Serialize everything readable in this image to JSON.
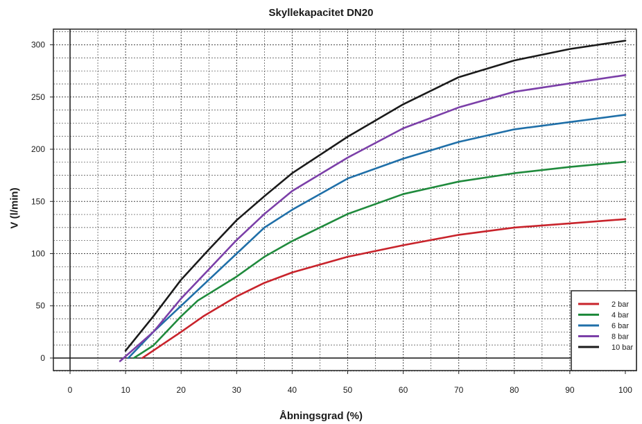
{
  "chart_data": {
    "type": "line",
    "title": "Skyllekapacitet DN20",
    "xlabel": "Åbningsgrad (%)",
    "ylabel": "V (l/min)",
    "xlim": [
      -3,
      102
    ],
    "ylim": [
      -12,
      315
    ],
    "x_ticks": [
      "0",
      "10",
      "20",
      "30",
      "40",
      "50",
      "60",
      "70",
      "80",
      "90",
      "100"
    ],
    "y_ticks": [
      "0",
      "50",
      "100",
      "150",
      "200",
      "250",
      "300"
    ],
    "grid": true,
    "legend_position": "bottom-right",
    "series": [
      {
        "name": "2 bar",
        "color": "#c8232b",
        "points": [
          [
            13,
            0
          ],
          [
            20,
            25
          ],
          [
            24,
            40
          ],
          [
            30,
            59
          ],
          [
            35,
            72
          ],
          [
            40,
            82
          ],
          [
            50,
            97
          ],
          [
            60,
            108
          ],
          [
            70,
            118
          ],
          [
            80,
            125
          ],
          [
            90,
            129
          ],
          [
            100,
            133
          ]
        ]
      },
      {
        "name": "4 bar",
        "color": "#1f8a3c",
        "points": [
          [
            11.5,
            0
          ],
          [
            15,
            12
          ],
          [
            20,
            40
          ],
          [
            23,
            55
          ],
          [
            30,
            78
          ],
          [
            35,
            97
          ],
          [
            40,
            112
          ],
          [
            50,
            138
          ],
          [
            60,
            157
          ],
          [
            70,
            169
          ],
          [
            80,
            177
          ],
          [
            90,
            183
          ],
          [
            100,
            188
          ]
        ]
      },
      {
        "name": "6 bar",
        "color": "#1f6fa8",
        "points": [
          [
            10.5,
            0
          ],
          [
            15,
            25
          ],
          [
            20,
            50
          ],
          [
            25,
            75
          ],
          [
            30,
            100
          ],
          [
            35,
            125
          ],
          [
            40,
            142
          ],
          [
            50,
            172
          ],
          [
            60,
            191
          ],
          [
            70,
            207
          ],
          [
            80,
            219
          ],
          [
            90,
            226
          ],
          [
            100,
            233
          ]
        ]
      },
      {
        "name": "8 bar",
        "color": "#7b3fa8",
        "points": [
          [
            9,
            -3
          ],
          [
            15,
            25
          ],
          [
            20,
            57
          ],
          [
            25,
            85
          ],
          [
            30,
            113
          ],
          [
            35,
            138
          ],
          [
            40,
            160
          ],
          [
            50,
            192
          ],
          [
            60,
            220
          ],
          [
            70,
            240
          ],
          [
            80,
            255
          ],
          [
            90,
            263
          ],
          [
            100,
            271
          ]
        ]
      },
      {
        "name": "10 bar",
        "color": "#1a1a1a",
        "points": [
          [
            10,
            7
          ],
          [
            15,
            40
          ],
          [
            20,
            75
          ],
          [
            25,
            104
          ],
          [
            30,
            132
          ],
          [
            35,
            155
          ],
          [
            40,
            177
          ],
          [
            50,
            212
          ],
          [
            60,
            243
          ],
          [
            70,
            269
          ],
          [
            80,
            285
          ],
          [
            90,
            296
          ],
          [
            100,
            304
          ]
        ]
      }
    ]
  }
}
